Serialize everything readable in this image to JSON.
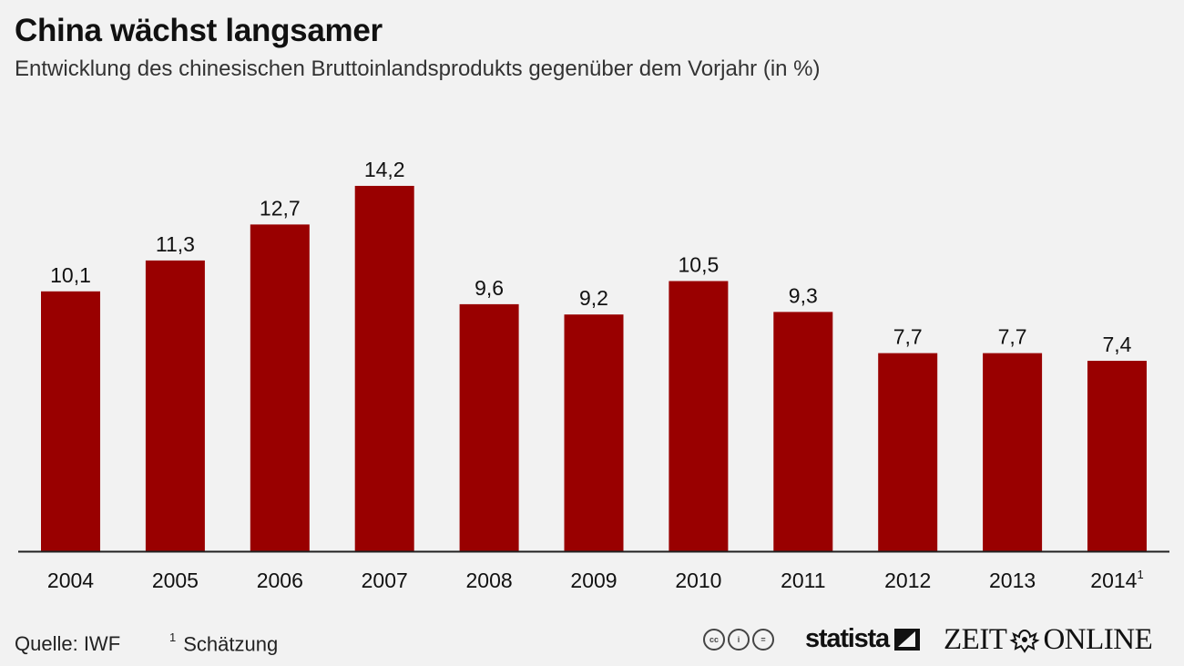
{
  "title": "China wächst langsamer",
  "subtitle": "Entwicklung des chinesischen Bruttoinlandsprodukts gegenüber dem Vorjahr (in %)",
  "footer": {
    "source": "Quelle: IWF",
    "note_mark": "1",
    "note": "Schätzung",
    "cc_icons": [
      "cc-icon",
      "by-icon",
      "nd-icon"
    ],
    "cc_labels": [
      "cc",
      "i",
      "="
    ],
    "brand1": "statista",
    "brand2_left": "ZEIT",
    "brand2_right": "ONLINE"
  },
  "colors": {
    "bar": "#990000",
    "background": "#f2f2f2",
    "axis": "#222222"
  },
  "chart_data": {
    "type": "bar",
    "title": "China wächst langsamer",
    "subtitle": "Entwicklung des chinesischen Bruttoinlandsprodukts gegenüber dem Vorjahr (in %)",
    "categories": [
      "2004",
      "2005",
      "2006",
      "2007",
      "2008",
      "2009",
      "2010",
      "2011",
      "2012",
      "2013",
      "2014"
    ],
    "category_marks": [
      "",
      "",
      "",
      "",
      "",
      "",
      "",
      "",
      "",
      "",
      "1"
    ],
    "values": [
      10.1,
      11.3,
      12.7,
      14.2,
      9.6,
      9.2,
      10.5,
      9.3,
      7.7,
      7.7,
      7.4
    ],
    "value_labels": [
      "10,1",
      "11,3",
      "12,7",
      "14,2",
      "9,6",
      "9,2",
      "10,5",
      "9,3",
      "7,7",
      "7,7",
      "7,4"
    ],
    "xlabel": "",
    "ylabel": "",
    "ylim": [
      0,
      14.2
    ],
    "grid": false,
    "legend": "none"
  }
}
